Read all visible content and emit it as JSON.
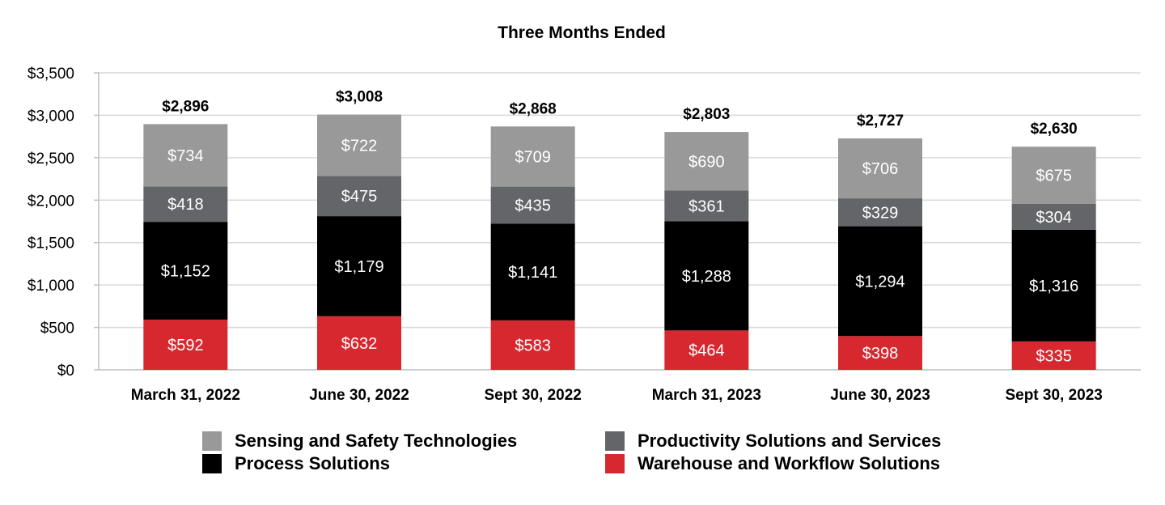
{
  "chart_data": {
    "type": "bar",
    "stacked": true,
    "title": "Three Months Ended",
    "categories": [
      "March 31, 2022",
      "June 30, 2022",
      "Sept 30, 2022",
      "March 31, 2023",
      "June 30, 2023",
      "Sept 30, 2023"
    ],
    "series": [
      {
        "name": "Warehouse and Workflow Solutions",
        "color": "#d7282f",
        "values": [
          592,
          632,
          583,
          464,
          398,
          335
        ],
        "labels": [
          "$592",
          "$632",
          "$583",
          "$464",
          "$398",
          "$335"
        ]
      },
      {
        "name": "Process Solutions",
        "color": "#000000",
        "values": [
          1152,
          1179,
          1141,
          1288,
          1294,
          1316
        ],
        "labels": [
          "$1,152",
          "$1,179",
          "$1,141",
          "$1,288",
          "$1,294",
          "$1,316"
        ]
      },
      {
        "name": "Productivity Solutions and Services",
        "color": "#636569",
        "values": [
          418,
          475,
          435,
          361,
          329,
          304
        ],
        "labels": [
          "$418",
          "$475",
          "$435",
          "$361",
          "$329",
          "$304"
        ]
      },
      {
        "name": "Sensing and Safety Technologies",
        "color": "#999999",
        "values": [
          734,
          722,
          709,
          690,
          706,
          675
        ],
        "labels": [
          "$734",
          "$722",
          "$709",
          "$690",
          "$706",
          "$675"
        ]
      }
    ],
    "totals": [
      "$2,896",
      "$3,008",
      "$2,868",
      "$2,803",
      "$2,727",
      "$2,630"
    ],
    "ylim": [
      0,
      3500
    ],
    "yticks": [
      0,
      500,
      1000,
      1500,
      2000,
      2500,
      3000,
      3500
    ],
    "ytick_labels": [
      "$0",
      "$500",
      "$1,000",
      "$1,500",
      "$2,000",
      "$2,500",
      "$3,000",
      "$3,500"
    ],
    "grid": true,
    "legend_position": "bottom"
  },
  "legend": [
    {
      "label": "Sensing and Safety Technologies",
      "color": "#999999"
    },
    {
      "label": "Productivity Solutions and Services",
      "color": "#636569"
    },
    {
      "label": "Process Solutions",
      "color": "#000000"
    },
    {
      "label": "Warehouse and Workflow Solutions",
      "color": "#d7282f"
    }
  ]
}
